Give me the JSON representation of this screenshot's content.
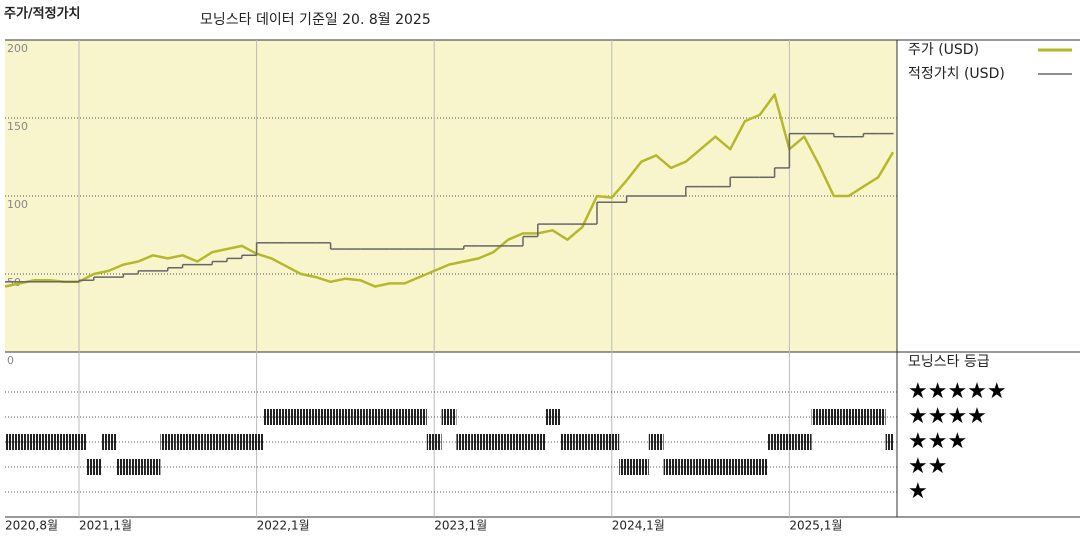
{
  "chart_data": {
    "type": "line",
    "title": "주가/적정가치",
    "subtitle": "모닝스타 데이터 기준일 20. 8월 2025",
    "x": [
      "2020-08",
      "2020-09",
      "2020-10",
      "2020-11",
      "2020-12",
      "2021-01",
      "2021-02",
      "2021-03",
      "2021-04",
      "2021-05",
      "2021-06",
      "2021-07",
      "2021-08",
      "2021-09",
      "2021-10",
      "2021-11",
      "2021-12",
      "2022-01",
      "2022-02",
      "2022-03",
      "2022-04",
      "2022-05",
      "2022-06",
      "2022-07",
      "2022-08",
      "2022-09",
      "2022-10",
      "2022-11",
      "2022-12",
      "2023-01",
      "2023-02",
      "2023-03",
      "2023-04",
      "2023-05",
      "2023-06",
      "2023-07",
      "2023-08",
      "2023-09",
      "2023-10",
      "2023-11",
      "2023-12",
      "2024-01",
      "2024-02",
      "2024-03",
      "2024-04",
      "2024-05",
      "2024-06",
      "2024-07",
      "2024-08",
      "2024-09",
      "2024-10",
      "2024-11",
      "2024-12",
      "2025-01",
      "2025-02",
      "2025-03",
      "2025-04",
      "2025-05",
      "2025-06",
      "2025-07",
      "2025-08"
    ],
    "series": [
      {
        "name": "주가 (USD)",
        "color": "#b5b82a",
        "values": [
          42,
          44,
          46,
          46,
          45,
          45,
          50,
          52,
          56,
          58,
          62,
          60,
          62,
          58,
          64,
          66,
          68,
          63,
          60,
          55,
          50,
          48,
          45,
          47,
          46,
          42,
          44,
          44,
          48,
          52,
          56,
          58,
          60,
          64,
          72,
          76,
          76,
          78,
          72,
          80,
          100,
          99,
          110,
          122,
          126,
          118,
          122,
          130,
          138,
          130,
          148,
          152,
          165,
          130,
          138,
          120,
          100,
          100,
          106,
          112,
          128
        ]
      },
      {
        "name": "적정가치 (USD)",
        "color": "#666666",
        "step": true,
        "values": [
          45,
          45,
          45,
          45,
          45,
          46,
          48,
          48,
          50,
          52,
          52,
          54,
          56,
          56,
          58,
          60,
          62,
          70,
          70,
          70,
          70,
          70,
          66,
          66,
          66,
          66,
          66,
          66,
          66,
          66,
          66,
          68,
          68,
          68,
          68,
          74,
          82,
          82,
          82,
          82,
          96,
          96,
          100,
          100,
          100,
          100,
          106,
          106,
          106,
          112,
          112,
          112,
          118,
          140,
          140,
          140,
          138,
          138,
          140,
          140,
          140
        ]
      }
    ],
    "ylim": [
      0,
      200
    ],
    "yticks": [
      0,
      50,
      100,
      150,
      200
    ],
    "xticks": [
      {
        "value": "2020-08",
        "label": "2020,8월"
      },
      {
        "value": "2021-01",
        "label": "2021,1월"
      },
      {
        "value": "2022-01",
        "label": "2022,1월"
      },
      {
        "value": "2023-01",
        "label": "2023,1월"
      },
      {
        "value": "2024-01",
        "label": "2024,1월"
      },
      {
        "value": "2025-01",
        "label": "2025,1월"
      }
    ],
    "grid": true,
    "rating": {
      "title": "모닝스타 등급",
      "levels": [
        {
          "value": 5,
          "label": "★★★★★"
        },
        {
          "value": 4,
          "label": "★★★★"
        },
        {
          "value": 3,
          "label": "★★★"
        },
        {
          "value": 2,
          "label": "★★"
        },
        {
          "value": 1,
          "label": "★"
        }
      ],
      "values": [
        3,
        3,
        3,
        3,
        3,
        3,
        2,
        3,
        2,
        2,
        2,
        3,
        3,
        3,
        3,
        3,
        3,
        3,
        4,
        4,
        4,
        4,
        4,
        4,
        4,
        4,
        4,
        4,
        4,
        3,
        4,
        3,
        3,
        3,
        3,
        3,
        3,
        4,
        3,
        3,
        3,
        3,
        2,
        2,
        3,
        2,
        2,
        2,
        2,
        2,
        2,
        2,
        3,
        3,
        3,
        4,
        4,
        4,
        4,
        4,
        3
      ]
    }
  }
}
